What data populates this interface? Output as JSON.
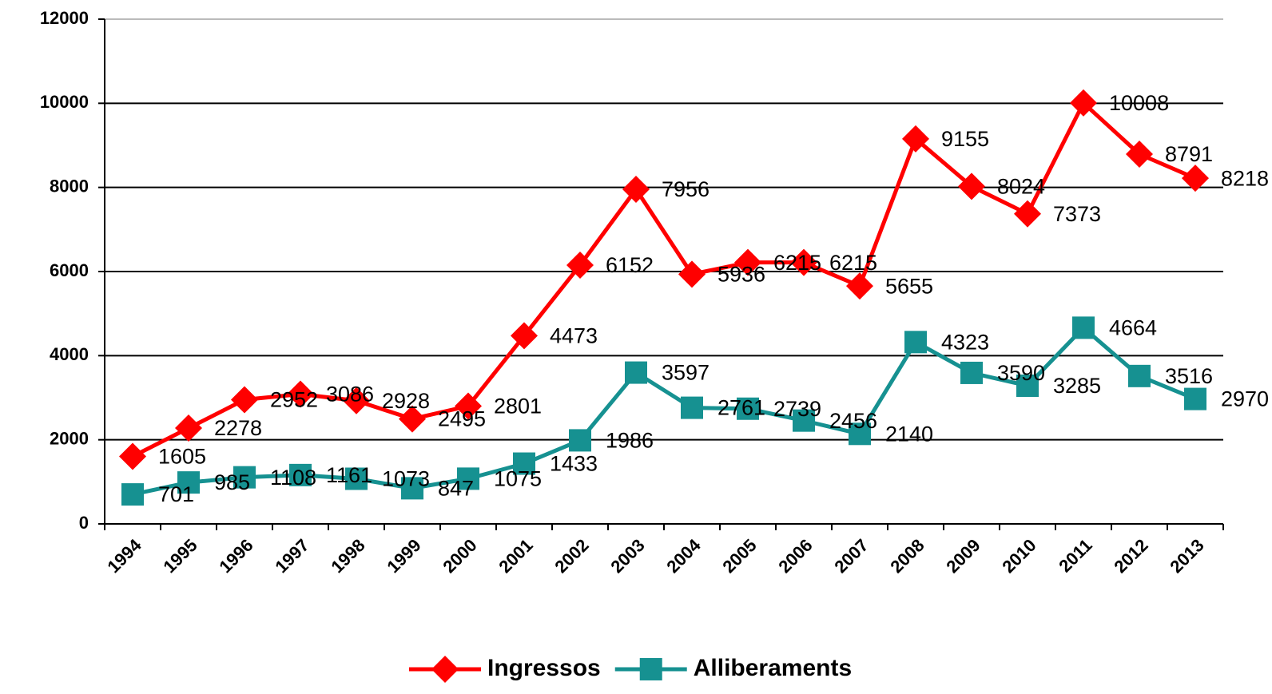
{
  "chart_data": {
    "type": "line",
    "categories": [
      "1994",
      "1995",
      "1996",
      "1997",
      "1998",
      "1999",
      "2000",
      "2001",
      "2002",
      "2003",
      "2004",
      "2005",
      "2006",
      "2007",
      "2008",
      "2009",
      "2010",
      "2011",
      "2012",
      "2013"
    ],
    "series": [
      {
        "name": "Ingressos",
        "color": "#ff0000",
        "marker": "diamond",
        "values": [
          1605,
          2278,
          2952,
          3086,
          2928,
          2495,
          2801,
          4473,
          6152,
          7956,
          5936,
          6215,
          6215,
          5655,
          9155,
          8024,
          7373,
          10008,
          8791,
          8218
        ]
      },
      {
        "name": "Alliberaments",
        "color": "#169191",
        "marker": "square",
        "values": [
          701,
          985,
          1108,
          1161,
          1073,
          847,
          1075,
          1433,
          1986,
          3597,
          2761,
          2739,
          2456,
          2140,
          4323,
          3590,
          3285,
          4664,
          3516,
          2970
        ]
      }
    ],
    "ylim": [
      0,
      12000
    ],
    "yticks": [
      0,
      2000,
      4000,
      6000,
      8000,
      10000,
      12000
    ],
    "grid": true,
    "legend": "bottom"
  }
}
